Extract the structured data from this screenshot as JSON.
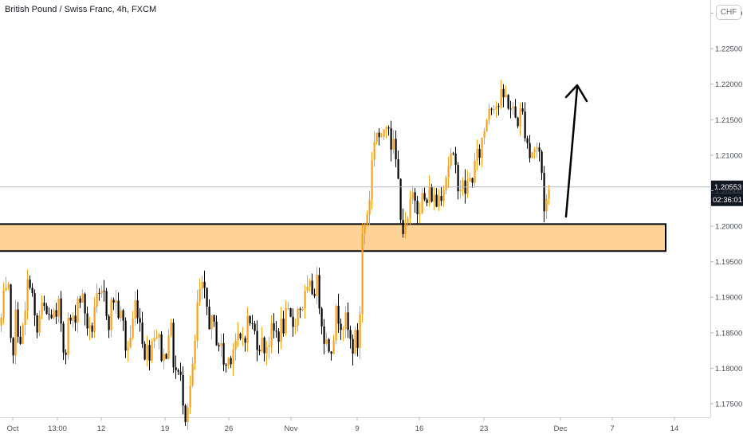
{
  "header": {
    "title": "British Pound / Swiss Franc, 4h, FXCM",
    "currency_button": "CHF"
  },
  "chart_data": {
    "type": "candlestick",
    "symbol": "British Pound / Swiss Franc, 4h, FXCM",
    "ylim": [
      1.1725,
      1.2305
    ],
    "y_ticks": [
      "1.17500",
      "1.18000",
      "1.18500",
      "1.19000",
      "1.19500",
      "1.20000",
      "1.20500",
      "1.21000",
      "1.21500",
      "1.22000",
      "1.22500",
      "1.23000"
    ],
    "x_ticks": [
      "Oct",
      "13:00",
      "12",
      "19",
      "26",
      "Nov",
      "9",
      "16",
      "23",
      "Dec",
      "7",
      "14"
    ],
    "current_price": "1.20553",
    "countdown": "02:36:01",
    "support_zone": [
      1.1965,
      1.2003
    ],
    "colors": {
      "up": "#f7a21b",
      "down": "#000000",
      "zone_fill": "#ffd398",
      "zone_stroke": "#000000",
      "arrow": "#000000"
    },
    "price_path": [
      [
        0,
        1.186
      ],
      [
        5,
        1.19
      ],
      [
        10,
        1.19
      ],
      [
        14,
        1.18
      ],
      [
        18,
        1.187
      ],
      [
        22,
        1.186
      ],
      [
        26,
        1.184
      ],
      [
        30,
        1.186
      ],
      [
        36,
        1.194
      ],
      [
        40,
        1.19
      ],
      [
        45,
        1.184
      ],
      [
        50,
        1.188
      ],
      [
        55,
        1.188
      ],
      [
        60,
        1.187
      ],
      [
        65,
        1.188
      ],
      [
        70,
        1.186
      ],
      [
        74,
        1.189
      ],
      [
        80,
        1.182
      ],
      [
        86,
        1.187
      ],
      [
        92,
        1.186
      ],
      [
        96,
        1.19
      ],
      [
        102,
        1.19
      ],
      [
        108,
        1.187
      ],
      [
        113,
        1.184
      ],
      [
        118,
        1.189
      ],
      [
        124,
        1.189
      ],
      [
        130,
        1.19
      ],
      [
        136,
        1.187
      ],
      [
        142,
        1.19
      ],
      [
        148,
        1.188
      ],
      [
        154,
        1.186
      ],
      [
        158,
        1.182
      ],
      [
        164,
        1.185
      ],
      [
        170,
        1.19
      ],
      [
        176,
        1.186
      ],
      [
        182,
        1.182
      ],
      [
        188,
        1.183
      ],
      [
        194,
        1.186
      ],
      [
        200,
        1.183
      ],
      [
        206,
        1.181
      ],
      [
        212,
        1.187
      ],
      [
        218,
        1.18
      ],
      [
        224,
        1.179
      ],
      [
        228,
        1.177
      ],
      [
        232,
        1.174
      ],
      [
        236,
        1.176
      ],
      [
        242,
        1.18
      ],
      [
        248,
        1.19
      ],
      [
        252,
        1.191
      ],
      [
        258,
        1.189
      ],
      [
        264,
        1.186
      ],
      [
        270,
        1.185
      ],
      [
        276,
        1.183
      ],
      [
        282,
        1.18
      ],
      [
        288,
        1.182
      ],
      [
        294,
        1.184
      ],
      [
        300,
        1.183
      ],
      [
        306,
        1.185
      ],
      [
        312,
        1.187
      ],
      [
        318,
        1.185
      ],
      [
        324,
        1.184
      ],
      [
        330,
        1.183
      ],
      [
        336,
        1.184
      ],
      [
        342,
        1.185
      ],
      [
        348,
        1.185
      ],
      [
        354,
        1.186
      ],
      [
        360,
        1.187
      ],
      [
        366,
        1.186
      ],
      [
        372,
        1.188
      ],
      [
        378,
        1.189
      ],
      [
        384,
        1.19
      ],
      [
        390,
        1.191
      ],
      [
        396,
        1.192
      ],
      [
        400,
        1.19
      ],
      [
        404,
        1.186
      ],
      [
        410,
        1.183
      ],
      [
        416,
        1.184
      ],
      [
        422,
        1.188
      ],
      [
        428,
        1.187
      ],
      [
        434,
        1.186
      ],
      [
        440,
        1.183
      ],
      [
        446,
        1.184
      ],
      [
        450,
        1.183
      ],
      [
        453,
        1.198
      ],
      [
        458,
        1.201
      ],
      [
        462,
        1.203
      ],
      [
        466,
        1.209
      ],
      [
        470,
        1.214
      ],
      [
        474,
        1.213
      ],
      [
        478,
        1.211
      ],
      [
        482,
        1.215
      ],
      [
        486,
        1.216
      ],
      [
        490,
        1.212
      ],
      [
        495,
        1.21
      ],
      [
        500,
        1.205
      ],
      [
        504,
        1.2
      ],
      [
        508,
        1.199
      ],
      [
        512,
        1.201
      ],
      [
        518,
        1.205
      ],
      [
        524,
        1.203
      ],
      [
        528,
        1.204
      ],
      [
        534,
        1.203
      ],
      [
        540,
        1.205
      ],
      [
        546,
        1.203
      ],
      [
        552,
        1.205
      ],
      [
        558,
        1.207
      ],
      [
        564,
        1.21
      ],
      [
        570,
        1.208
      ],
      [
        576,
        1.206
      ],
      [
        582,
        1.205
      ],
      [
        588,
        1.206
      ],
      [
        594,
        1.208
      ],
      [
        600,
        1.21
      ],
      [
        606,
        1.213
      ],
      [
        612,
        1.217
      ],
      [
        618,
        1.218
      ],
      [
        624,
        1.217
      ],
      [
        630,
        1.218
      ],
      [
        636,
        1.218
      ],
      [
        642,
        1.216
      ],
      [
        648,
        1.215
      ],
      [
        654,
        1.216
      ],
      [
        660,
        1.213
      ],
      [
        664,
        1.21
      ],
      [
        668,
        1.211
      ],
      [
        674,
        1.211
      ],
      [
        678,
        1.209
      ],
      [
        682,
        1.203
      ],
      [
        686,
        1.204
      ],
      [
        690,
        1.2055
      ]
    ]
  }
}
